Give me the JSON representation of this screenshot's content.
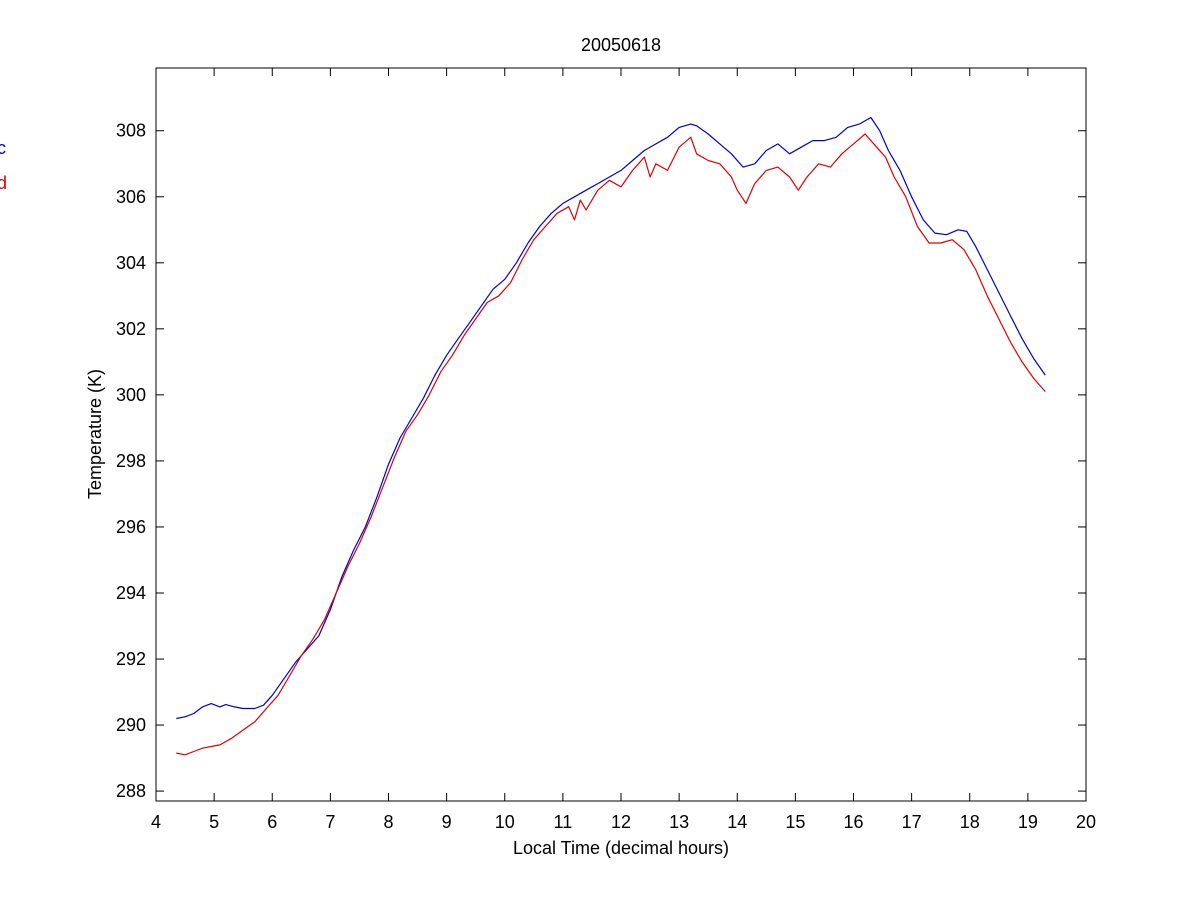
{
  "chart_data": {
    "type": "line",
    "title": "20050618",
    "xlabel": "Local Time (decimal hours)",
    "ylabel": "Temperature (K)",
    "xlim": [
      4,
      20
    ],
    "ylim": [
      287.7,
      309.9
    ],
    "xticks": [
      4,
      5,
      6,
      7,
      8,
      9,
      10,
      11,
      12,
      13,
      14,
      15,
      16,
      17,
      18,
      19,
      20
    ],
    "yticks": [
      288,
      290,
      292,
      294,
      296,
      298,
      300,
      302,
      304,
      306,
      308
    ],
    "grid": false,
    "legend_placement": "left-outside-top",
    "series": [
      {
        "name": "c",
        "color": "#0000cc",
        "x": [
          4.35,
          4.5,
          4.65,
          4.8,
          4.95,
          5.1,
          5.2,
          5.35,
          5.5,
          5.7,
          5.85,
          6.0,
          6.2,
          6.4,
          6.6,
          6.8,
          7.0,
          7.2,
          7.4,
          7.6,
          7.8,
          8.0,
          8.2,
          8.4,
          8.6,
          8.8,
          9.0,
          9.2,
          9.4,
          9.6,
          9.8,
          10.0,
          10.2,
          10.4,
          10.6,
          10.8,
          11.0,
          11.2,
          11.4,
          11.6,
          11.8,
          12.0,
          12.2,
          12.4,
          12.6,
          12.8,
          13.0,
          13.2,
          13.3,
          13.5,
          13.7,
          13.9,
          14.1,
          14.3,
          14.5,
          14.7,
          14.9,
          15.1,
          15.3,
          15.5,
          15.7,
          15.9,
          16.1,
          16.3,
          16.45,
          16.6,
          16.8,
          17.0,
          17.2,
          17.4,
          17.6,
          17.8,
          17.95,
          18.1,
          18.3,
          18.5,
          18.7,
          18.9,
          19.1,
          19.3
        ],
        "y": [
          290.2,
          290.25,
          290.35,
          290.55,
          290.65,
          290.55,
          290.62,
          290.55,
          290.5,
          290.5,
          290.6,
          290.9,
          291.4,
          291.9,
          292.3,
          292.7,
          293.5,
          294.5,
          295.3,
          296.0,
          296.9,
          297.9,
          298.7,
          299.3,
          299.9,
          300.6,
          301.2,
          301.7,
          302.2,
          302.7,
          303.2,
          303.5,
          304.0,
          304.6,
          305.1,
          305.5,
          305.8,
          306.0,
          306.2,
          306.4,
          306.6,
          306.8,
          307.1,
          307.4,
          307.6,
          307.8,
          308.1,
          308.2,
          308.15,
          307.9,
          307.6,
          307.3,
          306.9,
          307.0,
          307.4,
          307.6,
          307.3,
          307.5,
          307.7,
          307.7,
          307.8,
          308.1,
          308.2,
          308.4,
          308.0,
          307.4,
          306.8,
          306.0,
          305.3,
          304.9,
          304.85,
          305.0,
          304.95,
          304.5,
          303.8,
          303.1,
          302.4,
          301.7,
          301.1,
          300.6
        ]
      },
      {
        "name": "d",
        "color": "#dd0000",
        "x": [
          4.35,
          4.5,
          4.65,
          4.8,
          4.95,
          5.1,
          5.3,
          5.5,
          5.7,
          5.9,
          6.1,
          6.3,
          6.5,
          6.7,
          6.9,
          7.1,
          7.3,
          7.5,
          7.7,
          7.9,
          8.1,
          8.3,
          8.5,
          8.7,
          8.9,
          9.1,
          9.3,
          9.5,
          9.7,
          9.9,
          10.1,
          10.3,
          10.5,
          10.7,
          10.9,
          11.1,
          11.2,
          11.3,
          11.4,
          11.6,
          11.8,
          12.0,
          12.2,
          12.4,
          12.5,
          12.6,
          12.8,
          13.0,
          13.2,
          13.3,
          13.5,
          13.7,
          13.9,
          14.0,
          14.15,
          14.3,
          14.5,
          14.7,
          14.9,
          15.05,
          15.2,
          15.4,
          15.6,
          15.8,
          16.0,
          16.2,
          16.4,
          16.55,
          16.7,
          16.9,
          17.1,
          17.3,
          17.5,
          17.7,
          17.9,
          18.1,
          18.3,
          18.5,
          18.7,
          18.9,
          19.1,
          19.3
        ],
        "y": [
          289.15,
          289.1,
          289.2,
          289.3,
          289.35,
          289.4,
          289.6,
          289.85,
          290.1,
          290.5,
          290.9,
          291.5,
          292.1,
          292.6,
          293.2,
          294.0,
          294.8,
          295.5,
          296.3,
          297.2,
          298.1,
          298.9,
          299.4,
          300.0,
          300.7,
          301.2,
          301.8,
          302.3,
          302.8,
          303.0,
          303.4,
          304.1,
          304.7,
          305.1,
          305.5,
          305.7,
          305.3,
          305.9,
          305.6,
          306.2,
          306.5,
          306.3,
          306.8,
          307.2,
          306.6,
          307.0,
          306.8,
          307.5,
          307.8,
          307.3,
          307.1,
          307.0,
          306.6,
          306.2,
          305.8,
          306.4,
          306.8,
          306.9,
          306.6,
          306.2,
          306.6,
          307.0,
          306.9,
          307.3,
          307.6,
          307.9,
          307.5,
          307.2,
          306.6,
          306.0,
          305.1,
          304.6,
          304.6,
          304.7,
          304.4,
          303.8,
          303.0,
          302.3,
          301.6,
          301.0,
          300.5,
          300.1
        ]
      }
    ]
  }
}
